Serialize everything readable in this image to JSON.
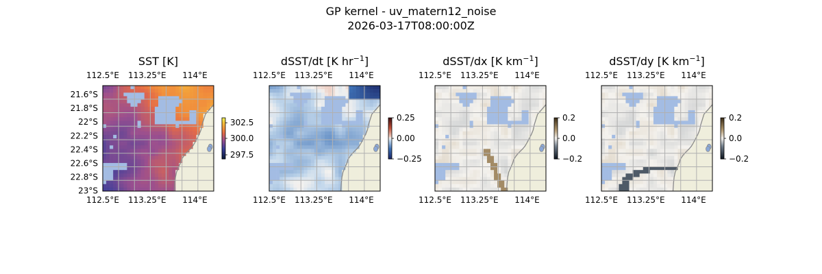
{
  "figure": {
    "title": "GP kernel - uv_matern12_noise",
    "subtitle": "2026-03-17T08:00:00Z"
  },
  "colors": {
    "land": "#efeedc",
    "coast": "#8a8a8a",
    "ocean_mask": "#a3bce3",
    "grid": "#b0b0b0"
  },
  "chart_data": [
    {
      "type": "heatmap",
      "title": "SST [K]",
      "title_base": "SST [K]",
      "title_sup": "",
      "title_tail": "",
      "x_ticks": [
        "112.5°E",
        "113.25°E",
        "114°E"
      ],
      "y_ticks": [
        "21.6°S",
        "21.8°S",
        "22°S",
        "22.2°S",
        "22.4°S",
        "22.6°S",
        "22.8°S",
        "23°S"
      ],
      "lon_range": [
        112.5,
        114.25
      ],
      "lat_range": [
        -23.0,
        -21.5
      ],
      "colorbar": {
        "ticks": [
          "302.5",
          "300.0",
          "297.5"
        ],
        "range": [
          296.8,
          303.3
        ],
        "colormap": "thermal"
      },
      "show_ylabels": true,
      "field": "sst"
    },
    {
      "type": "heatmap",
      "title": "dSST/dt [K hr−1]",
      "title_base": "dSST/dt [K hr",
      "title_sup": "−1",
      "title_tail": "]",
      "x_ticks": [
        "112.5°E",
        "113.25°E",
        "114°E"
      ],
      "y_ticks": [],
      "lon_range": [
        112.5,
        114.25
      ],
      "lat_range": [
        -23.0,
        -21.5
      ],
      "colorbar": {
        "ticks": [
          "0.25",
          "0.00",
          "−0.25"
        ],
        "range": [
          -0.45,
          0.45
        ],
        "colormap": "balance"
      },
      "show_ylabels": false,
      "field": "dt"
    },
    {
      "type": "heatmap",
      "title": "dSST/dx [K km−1]",
      "title_base": "dSST/dx [K km",
      "title_sup": "−1",
      "title_tail": "]",
      "x_ticks": [
        "112.5°E",
        "113.25°E",
        "114°E"
      ],
      "y_ticks": [],
      "lon_range": [
        112.5,
        114.25
      ],
      "lat_range": [
        -23.0,
        -21.5
      ],
      "colorbar": {
        "ticks": [
          "0.2",
          "0.0",
          "−0.2"
        ],
        "range": [
          -0.25,
          0.25
        ],
        "colormap": "diff"
      },
      "show_ylabels": false,
      "field": "dx"
    },
    {
      "type": "heatmap",
      "title": "dSST/dy [K km−1]",
      "title_base": "dSST/dy [K km",
      "title_sup": "−1",
      "title_tail": "]",
      "x_ticks": [
        "112.5°E",
        "113.25°E",
        "114°E"
      ],
      "y_ticks": [],
      "lon_range": [
        112.5,
        114.25
      ],
      "lat_range": [
        -23.0,
        -21.5
      ],
      "colorbar": {
        "ticks": [
          "0.2",
          "0.0",
          "−0.2"
        ],
        "range": [
          -0.25,
          0.25
        ],
        "colormap": "diff"
      },
      "show_ylabels": false,
      "field": "dy"
    }
  ]
}
